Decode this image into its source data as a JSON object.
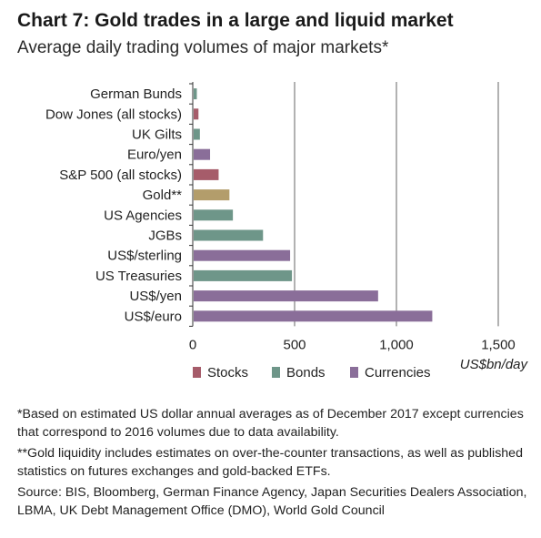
{
  "header": {
    "title": "Chart 7: Gold trades in a large and liquid market",
    "subtitle": "Average daily trading volumes of major markets*"
  },
  "colors": {
    "Stocks": "#a65c6a",
    "Bonds": "#6e9689",
    "Currencies": "#8a6e99",
    "Gold": "#b39d6b"
  },
  "chart_data": {
    "type": "bar",
    "orientation": "horizontal",
    "categories": [
      "German Bunds",
      "Dow Jones (all stocks)",
      "UK Gilts",
      "Euro/yen",
      "S&P 500 (all stocks)",
      "Gold**",
      "US Agencies",
      "JGBs",
      "US$/sterling",
      "US Treasuries",
      "US$/yen",
      "US$/euro"
    ],
    "values": [
      20,
      28,
      35,
      85,
      127,
      180,
      197,
      345,
      478,
      487,
      910,
      1176
    ],
    "groups": [
      "Bonds",
      "Stocks",
      "Bonds",
      "Currencies",
      "Stocks",
      "Gold",
      "Bonds",
      "Bonds",
      "Currencies",
      "Bonds",
      "Currencies",
      "Currencies"
    ],
    "xlim": [
      0,
      1500
    ],
    "xticks": [
      0,
      500,
      1000,
      1500
    ],
    "xtick_labels": [
      "0",
      "500",
      "1,000",
      "1,500"
    ],
    "xlabel": "US$bn/day",
    "ylabel": "",
    "legend": [
      "Stocks",
      "Bonds",
      "Currencies"
    ],
    "legend_position": "bottom",
    "grid": true
  },
  "notes": {
    "note1": "*Based on estimated US dollar annual averages as of December 2017 except currencies that correspond to 2016 volumes due to data availability.",
    "note2": "**Gold liquidity includes estimates on over-the-counter transactions, as well as published statistics on futures exchanges and gold-backed ETFs.",
    "source": "Source: BIS, Bloomberg, German Finance Agency, Japan Securities Dealers Association, LBMA, UK Debt Management Office (DMO), World Gold Council"
  }
}
